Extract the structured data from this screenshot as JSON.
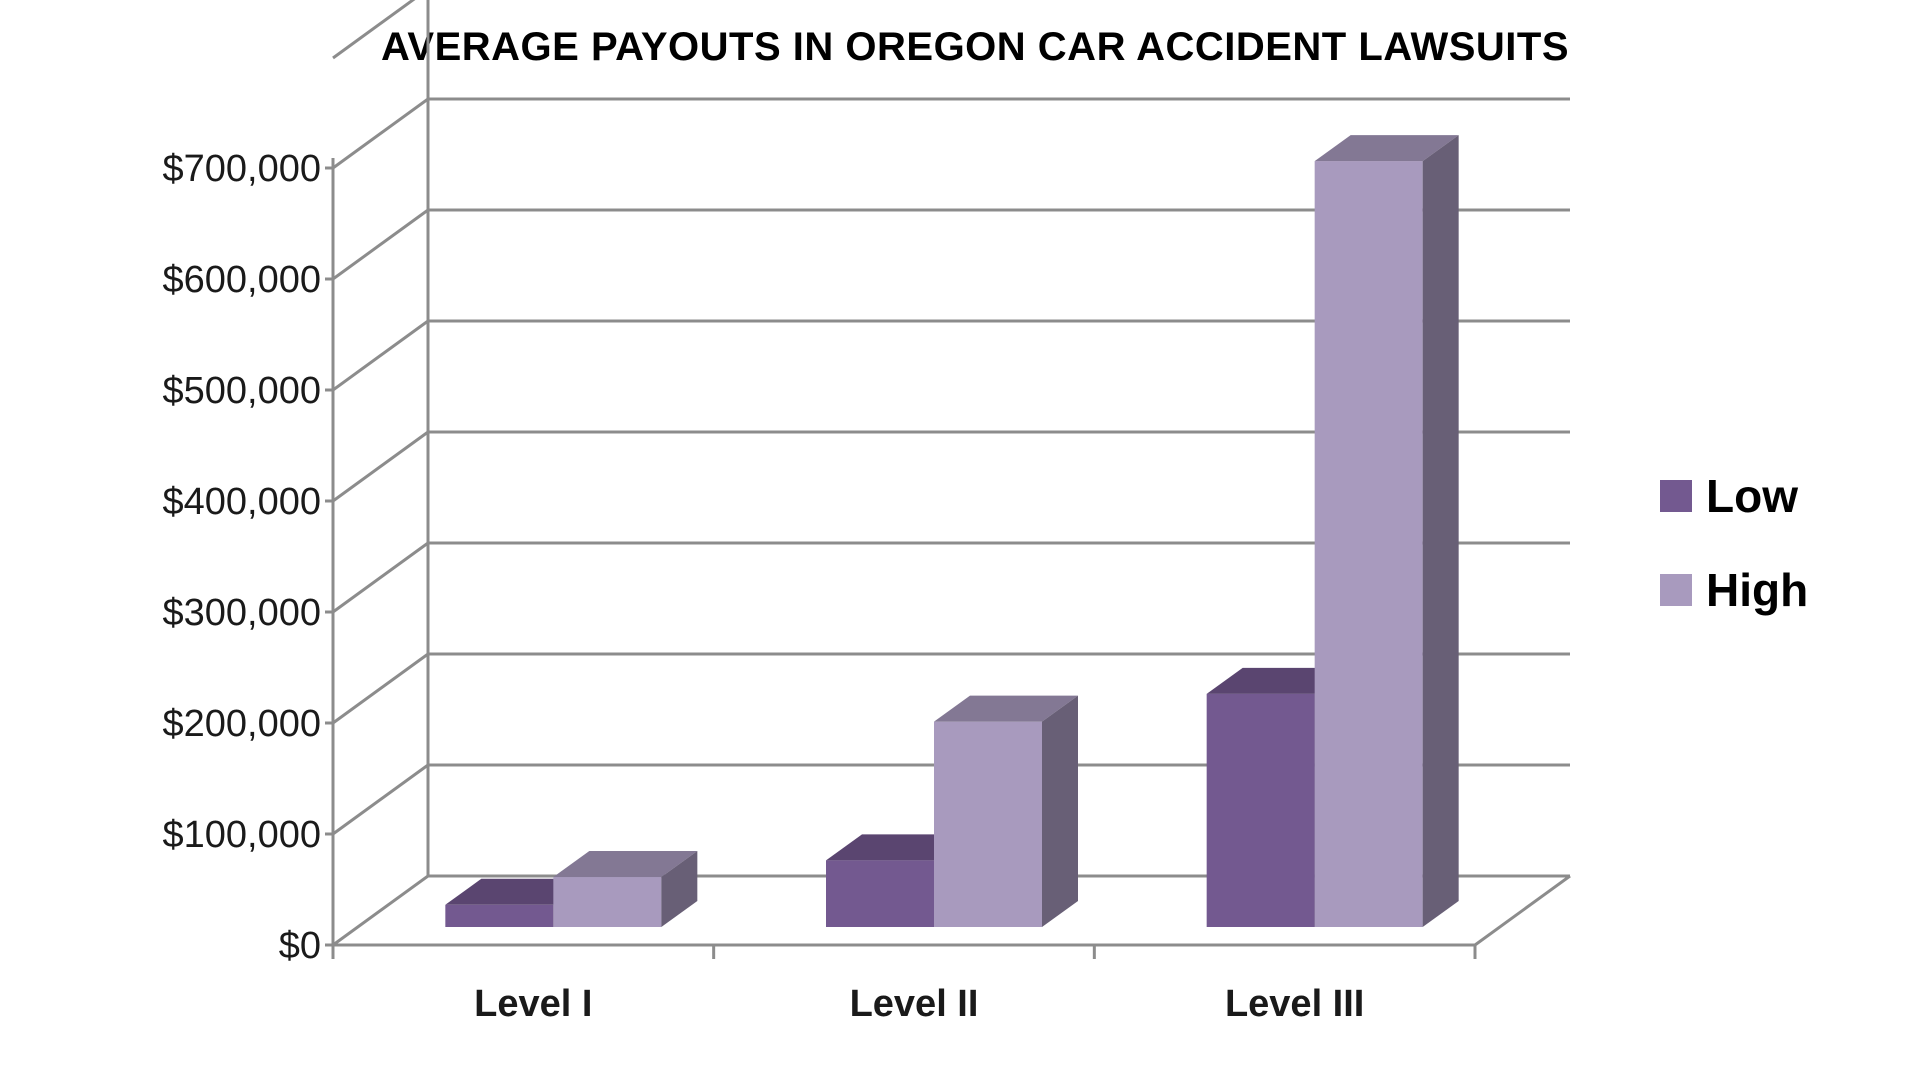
{
  "chart_data": {
    "type": "bar",
    "title": "AVERAGE PAYOUTS IN OREGON CAR ACCIDENT LAWSUITS",
    "xlabel": "",
    "ylabel": "",
    "categories": [
      "Level I",
      "Level II",
      "Level III"
    ],
    "series": [
      {
        "name": "Low",
        "values": [
          20000,
          60000,
          210000
        ],
        "color": "#735990"
      },
      {
        "name": "High",
        "values": [
          45000,
          185000,
          690000
        ],
        "color": "#a89abe"
      }
    ],
    "ylim": [
      0,
      700000
    ],
    "yticks": [
      0,
      100000,
      200000,
      300000,
      400000,
      500000,
      600000,
      700000
    ],
    "ytick_labels": [
      "$0",
      "$100,000",
      "$200,000",
      "$300,000",
      "$400,000",
      "$500,000",
      "$600,000",
      "$700,000"
    ],
    "grid": true,
    "legend_position": "right",
    "style": "3d-column"
  }
}
